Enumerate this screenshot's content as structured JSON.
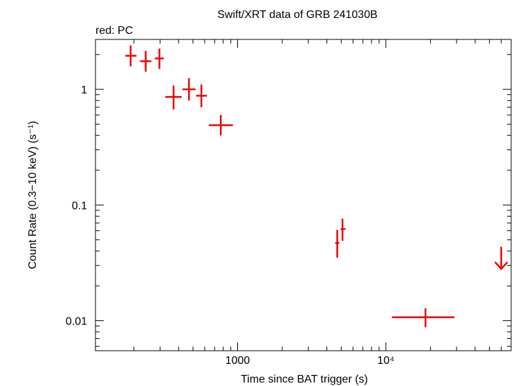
{
  "chart_data": {
    "type": "scatter",
    "title": "Swift/XRT data of GRB 241030B",
    "subtitle": "red: PC",
    "xlabel": "Time since BAT trigger (s)",
    "ylabel": "Count Rate (0.3−10 keV) (s⁻¹)",
    "x_scale": "log",
    "y_scale": "log",
    "xlim": [
      110,
      70000
    ],
    "ylim": [
      0.0055,
      2.7
    ],
    "x_tick_labels": [
      {
        "value": 1000,
        "label": "1000"
      },
      {
        "value": 10000,
        "label": "10⁴"
      }
    ],
    "y_tick_labels": [
      {
        "value": 1,
        "label": "1"
      },
      {
        "value": 0.1,
        "label": "0.1"
      },
      {
        "value": 0.01,
        "label": "0.01"
      }
    ],
    "grid": false,
    "color": "#ee0000",
    "series": [
      {
        "points": [
          {
            "x": 190,
            "xlo": 175,
            "xhi": 208,
            "y": 1.95,
            "ylo": 1.58,
            "yhi": 2.4
          },
          {
            "x": 240,
            "xlo": 220,
            "xhi": 262,
            "y": 1.75,
            "ylo": 1.42,
            "yhi": 2.15
          },
          {
            "x": 297,
            "xlo": 276,
            "xhi": 318,
            "y": 1.85,
            "ylo": 1.5,
            "yhi": 2.25
          },
          {
            "x": 370,
            "xlo": 325,
            "xhi": 420,
            "y": 0.86,
            "ylo": 0.67,
            "yhi": 1.08
          },
          {
            "x": 470,
            "xlo": 425,
            "xhi": 520,
            "y": 1.0,
            "ylo": 0.8,
            "yhi": 1.25
          },
          {
            "x": 570,
            "xlo": 525,
            "xhi": 620,
            "y": 0.88,
            "ylo": 0.7,
            "yhi": 1.1
          },
          {
            "x": 770,
            "xlo": 640,
            "xhi": 930,
            "y": 0.49,
            "ylo": 0.4,
            "yhi": 0.6
          },
          {
            "x": 4700,
            "xlo": 4550,
            "xhi": 4850,
            "y": 0.047,
            "ylo": 0.035,
            "yhi": 0.061
          },
          {
            "x": 5100,
            "xlo": 4950,
            "xhi": 5350,
            "y": 0.062,
            "ylo": 0.049,
            "yhi": 0.076
          },
          {
            "x": 18500,
            "xlo": 11000,
            "xhi": 29000,
            "y": 0.0107,
            "ylo": 0.0088,
            "yhi": 0.0128
          }
        ],
        "upper_limits": [
          {
            "x": 60000,
            "y": 0.028
          }
        ]
      }
    ]
  }
}
